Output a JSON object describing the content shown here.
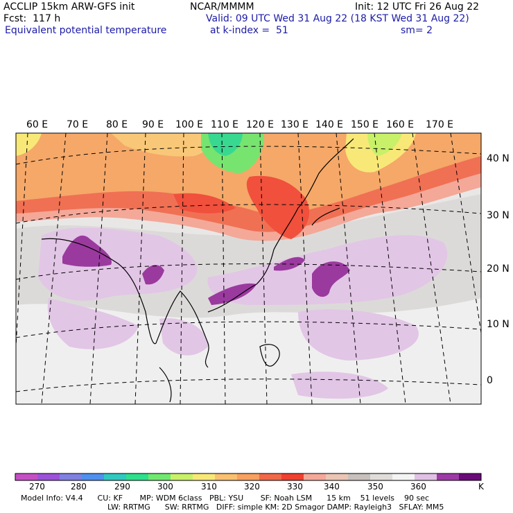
{
  "header": {
    "model": "ACCLIP 15km ARW-GFS init",
    "forecast": "Fcst:  117 h",
    "field": "Equivalent potential temperature",
    "org": "NCAR/MMMM",
    "init": "Init: 12 UTC Fri 26 Aug 22",
    "valid": "Valid: 09 UTC Wed 31 Aug 22 (18 KST Wed 31 Aug 22)",
    "level": "at k-index =  51",
    "smooth": "sm= 2"
  },
  "map": {
    "lon_labels": [
      "60 E",
      "70 E",
      "80 E",
      "90 E",
      "100 E",
      "110 E",
      "120 E",
      "130 E",
      "140 E",
      "150 E",
      "160 E",
      "170 E"
    ],
    "lat_labels": [
      "40 N",
      "30 N",
      "20 N",
      "10 N",
      "0"
    ]
  },
  "legend": {
    "unit": "K",
    "labels": [
      "270",
      "280",
      "290",
      "300",
      "310",
      "320",
      "330",
      "340",
      "350",
      "360"
    ],
    "colors": [
      "#c44fc4",
      "#9b52d9",
      "#8080e0",
      "#5090ee",
      "#30c8c0",
      "#2ee08c",
      "#70e870",
      "#c8f068",
      "#f8e878",
      "#f8c070",
      "#f8a060",
      "#f06848",
      "#f04030",
      "#f4a898",
      "#ecc4b4",
      "#c8c0bc",
      "#e0dcda",
      "#f4f4f4",
      "#e0c0e4",
      "#9e3aa6",
      "#6a0a7a"
    ]
  },
  "footer": {
    "line1": "Model Info: V4.4      CU: KF       MP: WDM 6class   PBL: YSU       SF: Noah LSM      15 km    51 levels    90 sec",
    "line2": "LW: RRTMG      SW: RRTMG   DIFF: simple KM: 2D Smagor DAMP: Rayleigh3   SFLAY: MM5"
  }
}
